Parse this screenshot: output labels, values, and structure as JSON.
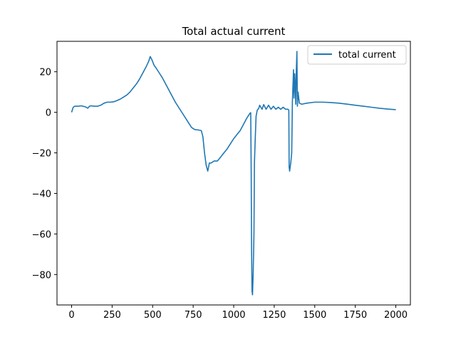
{
  "chart_data": {
    "type": "line",
    "title": "Total actual current",
    "xlabel": "",
    "ylabel": "",
    "xlim": [
      -90,
      2090
    ],
    "ylim": [
      -95,
      35
    ],
    "x_ticks": [
      0,
      250,
      500,
      750,
      1000,
      1250,
      1500,
      1750,
      2000
    ],
    "y_ticks": [
      -80,
      -60,
      -40,
      -20,
      0,
      20
    ],
    "grid": false,
    "legend": {
      "placement": "top-right"
    },
    "series": [
      {
        "name": "total current",
        "color": "#1f77b4",
        "points": [
          [
            0,
            0
          ],
          [
            10,
            2.5
          ],
          [
            20,
            3
          ],
          [
            40,
            3
          ],
          [
            60,
            3.2
          ],
          [
            80,
            2.8
          ],
          [
            90,
            2.5
          ],
          [
            100,
            2
          ],
          [
            110,
            3
          ],
          [
            120,
            3.2
          ],
          [
            140,
            3
          ],
          [
            160,
            3
          ],
          [
            180,
            3.5
          ],
          [
            200,
            4.5
          ],
          [
            220,
            5
          ],
          [
            240,
            5
          ],
          [
            260,
            5.2
          ],
          [
            280,
            5.8
          ],
          [
            300,
            6.5
          ],
          [
            320,
            7.5
          ],
          [
            340,
            8.5
          ],
          [
            360,
            10
          ],
          [
            380,
            12
          ],
          [
            400,
            14
          ],
          [
            420,
            16.5
          ],
          [
            440,
            19.5
          ],
          [
            460,
            22.5
          ],
          [
            475,
            25
          ],
          [
            485,
            27.5
          ],
          [
            495,
            26
          ],
          [
            510,
            23
          ],
          [
            520,
            22
          ],
          [
            540,
            19.5
          ],
          [
            560,
            17
          ],
          [
            580,
            14
          ],
          [
            600,
            11
          ],
          [
            620,
            8
          ],
          [
            640,
            5
          ],
          [
            660,
            2.5
          ],
          [
            680,
            0
          ],
          [
            700,
            -2.5
          ],
          [
            720,
            -5
          ],
          [
            740,
            -7.5
          ],
          [
            760,
            -8.5
          ],
          [
            780,
            -8.7
          ],
          [
            800,
            -9
          ],
          [
            810,
            -12
          ],
          [
            820,
            -20
          ],
          [
            830,
            -26
          ],
          [
            840,
            -29
          ],
          [
            850,
            -25
          ],
          [
            860,
            -25
          ],
          [
            880,
            -24
          ],
          [
            900,
            -24
          ],
          [
            920,
            -22
          ],
          [
            940,
            -20
          ],
          [
            960,
            -18
          ],
          [
            980,
            -15.5
          ],
          [
            1000,
            -13
          ],
          [
            1020,
            -11
          ],
          [
            1040,
            -9
          ],
          [
            1060,
            -6
          ],
          [
            1080,
            -3
          ],
          [
            1100,
            -0.5
          ],
          [
            1105,
            -0.2
          ],
          [
            1108,
            -30
          ],
          [
            1110,
            -65
          ],
          [
            1113,
            -88
          ],
          [
            1116,
            -90
          ],
          [
            1120,
            -80
          ],
          [
            1125,
            -60
          ],
          [
            1128,
            -25
          ],
          [
            1132,
            -15
          ],
          [
            1138,
            -2
          ],
          [
            1145,
            1
          ],
          [
            1155,
            2
          ],
          [
            1160,
            3.5
          ],
          [
            1175,
            1.5
          ],
          [
            1185,
            3.8
          ],
          [
            1200,
            1.5
          ],
          [
            1215,
            3.5
          ],
          [
            1230,
            1.5
          ],
          [
            1245,
            3
          ],
          [
            1260,
            1.5
          ],
          [
            1275,
            2.5
          ],
          [
            1290,
            1.5
          ],
          [
            1305,
            2.5
          ],
          [
            1320,
            1.5
          ],
          [
            1335,
            1.5
          ],
          [
            1340,
            1
          ],
          [
            1342,
            -27
          ],
          [
            1345,
            -29
          ],
          [
            1352,
            -25
          ],
          [
            1358,
            -20
          ],
          [
            1362,
            5
          ],
          [
            1366,
            14
          ],
          [
            1369,
            21
          ],
          [
            1372,
            7
          ],
          [
            1376,
            19
          ],
          [
            1380,
            12
          ],
          [
            1383,
            4
          ],
          [
            1386,
            20
          ],
          [
            1390,
            30
          ],
          [
            1393,
            3
          ],
          [
            1397,
            10
          ],
          [
            1405,
            4.5
          ],
          [
            1420,
            4
          ],
          [
            1450,
            4.5
          ],
          [
            1500,
            5
          ],
          [
            1550,
            5
          ],
          [
            1600,
            4.8
          ],
          [
            1650,
            4.5
          ],
          [
            1700,
            4
          ],
          [
            1750,
            3.5
          ],
          [
            1800,
            3
          ],
          [
            1850,
            2.5
          ],
          [
            1900,
            2
          ],
          [
            1950,
            1.6
          ],
          [
            2000,
            1.3
          ]
        ]
      }
    ]
  }
}
